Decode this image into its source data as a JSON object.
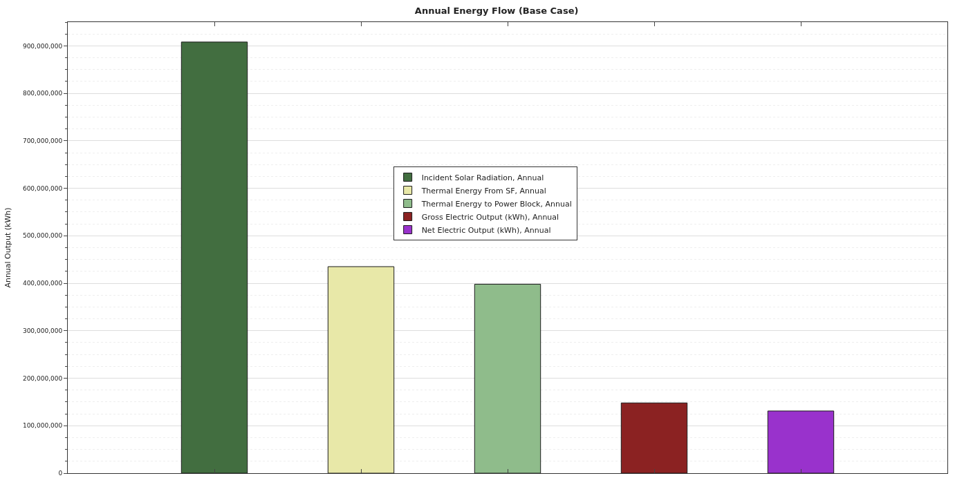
{
  "chart_data": {
    "type": "bar",
    "title": "Annual Energy Flow (Base Case)",
    "ylabel": "Annual Output (kWh)",
    "categories": [
      null,
      null,
      null,
      null,
      null
    ],
    "series": [
      {
        "name": "Incident Solar Radiation, Annual",
        "color": "#426e40",
        "values": [
          908000000,
          null,
          null,
          null,
          null
        ]
      },
      {
        "name": "Thermal Energy From SF, Annual",
        "color": "#e8e8a8",
        "values": [
          null,
          435000000,
          null,
          null,
          null
        ]
      },
      {
        "name": "Thermal Energy to Power Block, Annual",
        "color": "#8fbc8b",
        "values": [
          null,
          null,
          398000000,
          null,
          null
        ]
      },
      {
        "name": "Gross Electric Output (kWh), Annual",
        "color": "#8b2222",
        "values": [
          null,
          null,
          null,
          148000000,
          null
        ]
      },
      {
        "name": "Net Electric Output (kWh), Annual",
        "color": "#9932cc",
        "values": [
          null,
          null,
          null,
          null,
          131000000
        ]
      }
    ],
    "ylim": [
      0,
      950000000
    ],
    "yticks": [
      {
        "value": 0,
        "label": "0"
      },
      {
        "value": 100000000,
        "label": "100,000,000"
      },
      {
        "value": 200000000,
        "label": "200,000,000"
      },
      {
        "value": 300000000,
        "label": "300,000,000"
      },
      {
        "value": 400000000,
        "label": "400,000,000"
      },
      {
        "value": 500000000,
        "label": "500,000,000"
      },
      {
        "value": 600000000,
        "label": "600,000,000"
      },
      {
        "value": 700000000,
        "label": "700,000,000"
      },
      {
        "value": 800000000,
        "label": "800,000,000"
      },
      {
        "value": 900000000,
        "label": "900,000,000"
      }
    ],
    "grid": "y",
    "legend": "top"
  }
}
